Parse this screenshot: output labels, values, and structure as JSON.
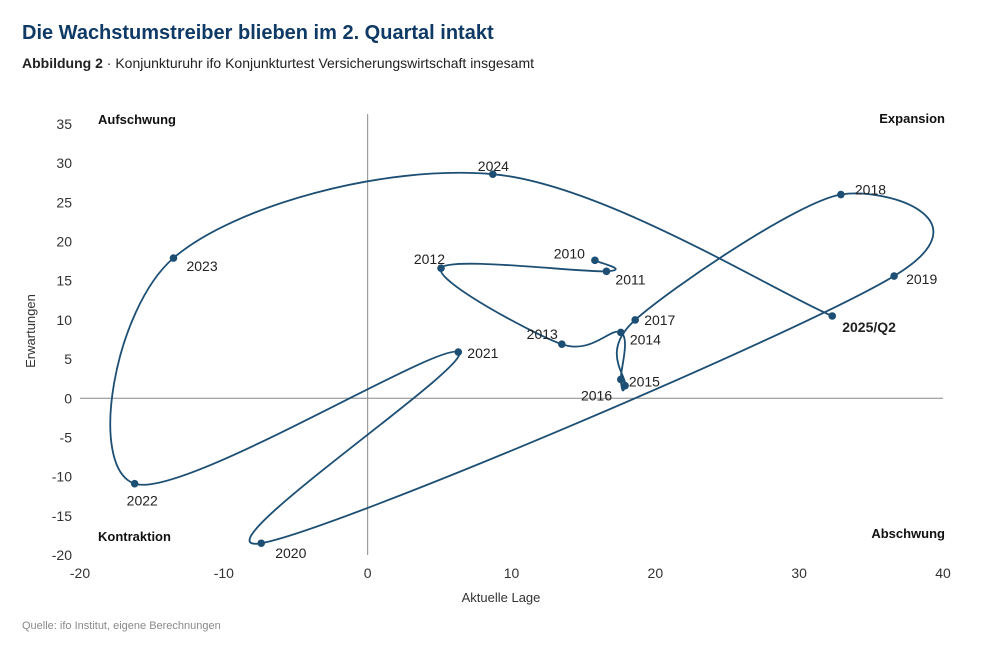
{
  "title": "Die Wachstumstreiber blieben im 2. Quartal intakt",
  "subtitle_lead": "Abbildung 2",
  "subtitle_sep": " · ",
  "subtitle_text": "Konjunkturuhr ifo Konjunkturtest Versicherungswirtschaft insgesamt",
  "source": "Quelle: ifo Institut, eigene Berechnungen",
  "colors": {
    "line": "#1d4f74",
    "point": "#1d4f74",
    "highlight": "#e07a3c",
    "axis": "#888888"
  },
  "chart_data": {
    "type": "line",
    "xlabel": "Aktuelle Lage",
    "ylabel": "Erwartungen",
    "xlim": [
      -20,
      40
    ],
    "ylim": [
      -20,
      35
    ],
    "xticks": [
      -20,
      -10,
      0,
      10,
      20,
      30,
      40
    ],
    "yticks": [
      35,
      30,
      25,
      20,
      15,
      10,
      5,
      0,
      -5,
      -10,
      -15,
      -20
    ],
    "quadrants": {
      "top_left": "Aufschwung",
      "top_right": "Expansion",
      "bottom_left": "Kontraktion",
      "bottom_right": "Abschwung"
    },
    "points": [
      {
        "label": "2010",
        "x": 15.8,
        "y": 17.6
      },
      {
        "label": "2011",
        "x": 16.6,
        "y": 16.2
      },
      {
        "label": "2012",
        "x": 5.1,
        "y": 16.6
      },
      {
        "label": "2013",
        "x": 13.5,
        "y": 6.9
      },
      {
        "label": "2014",
        "x": 17.6,
        "y": 8.4
      },
      {
        "label": "2015",
        "x": 17.6,
        "y": 2.4
      },
      {
        "label": "2016",
        "x": 17.9,
        "y": 1.6
      },
      {
        "label": "2017",
        "x": 18.6,
        "y": 10.0
      },
      {
        "label": "2018",
        "x": 32.9,
        "y": 26.0
      },
      {
        "label": "2019",
        "x": 36.6,
        "y": 15.6
      },
      {
        "label": "2020",
        "x": -7.4,
        "y": -18.5
      },
      {
        "label": "2021",
        "x": 6.3,
        "y": 5.9
      },
      {
        "label": "2022",
        "x": -16.2,
        "y": -10.9
      },
      {
        "label": "2023",
        "x": -13.5,
        "y": 17.9
      },
      {
        "label": "2024",
        "x": 8.7,
        "y": 28.6
      },
      {
        "label": "2025/Q2",
        "x": 32.3,
        "y": 10.5,
        "highlight": true
      }
    ]
  }
}
